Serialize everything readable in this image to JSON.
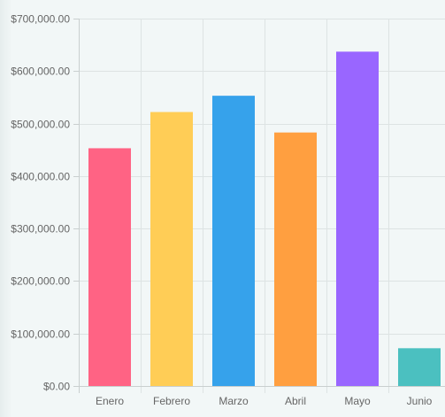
{
  "chart_data": {
    "type": "bar",
    "categories": [
      "Enero",
      "Febrero",
      "Marzo",
      "Abril",
      "Mayo",
      "Junio"
    ],
    "values": [
      453000,
      522000,
      553000,
      483000,
      637000,
      72000
    ],
    "colors": [
      "#ff6384",
      "#ffcd56",
      "#36a2eb",
      "#ff9f40",
      "#9966ff",
      "#4bc0c0"
    ],
    "y_tick_labels": [
      "$0.00",
      "$100,000.00",
      "$200,000.00",
      "$300,000.00",
      "$400,000.00",
      "$500,000.00",
      "$600,000.00",
      "$700,000.00"
    ],
    "y_ticks": [
      0,
      100000,
      200000,
      300000,
      400000,
      500000,
      600000,
      700000
    ],
    "ylim": [
      0,
      700000
    ],
    "grid": true,
    "legend": "none",
    "title": "",
    "xlabel": "",
    "ylabel": ""
  }
}
